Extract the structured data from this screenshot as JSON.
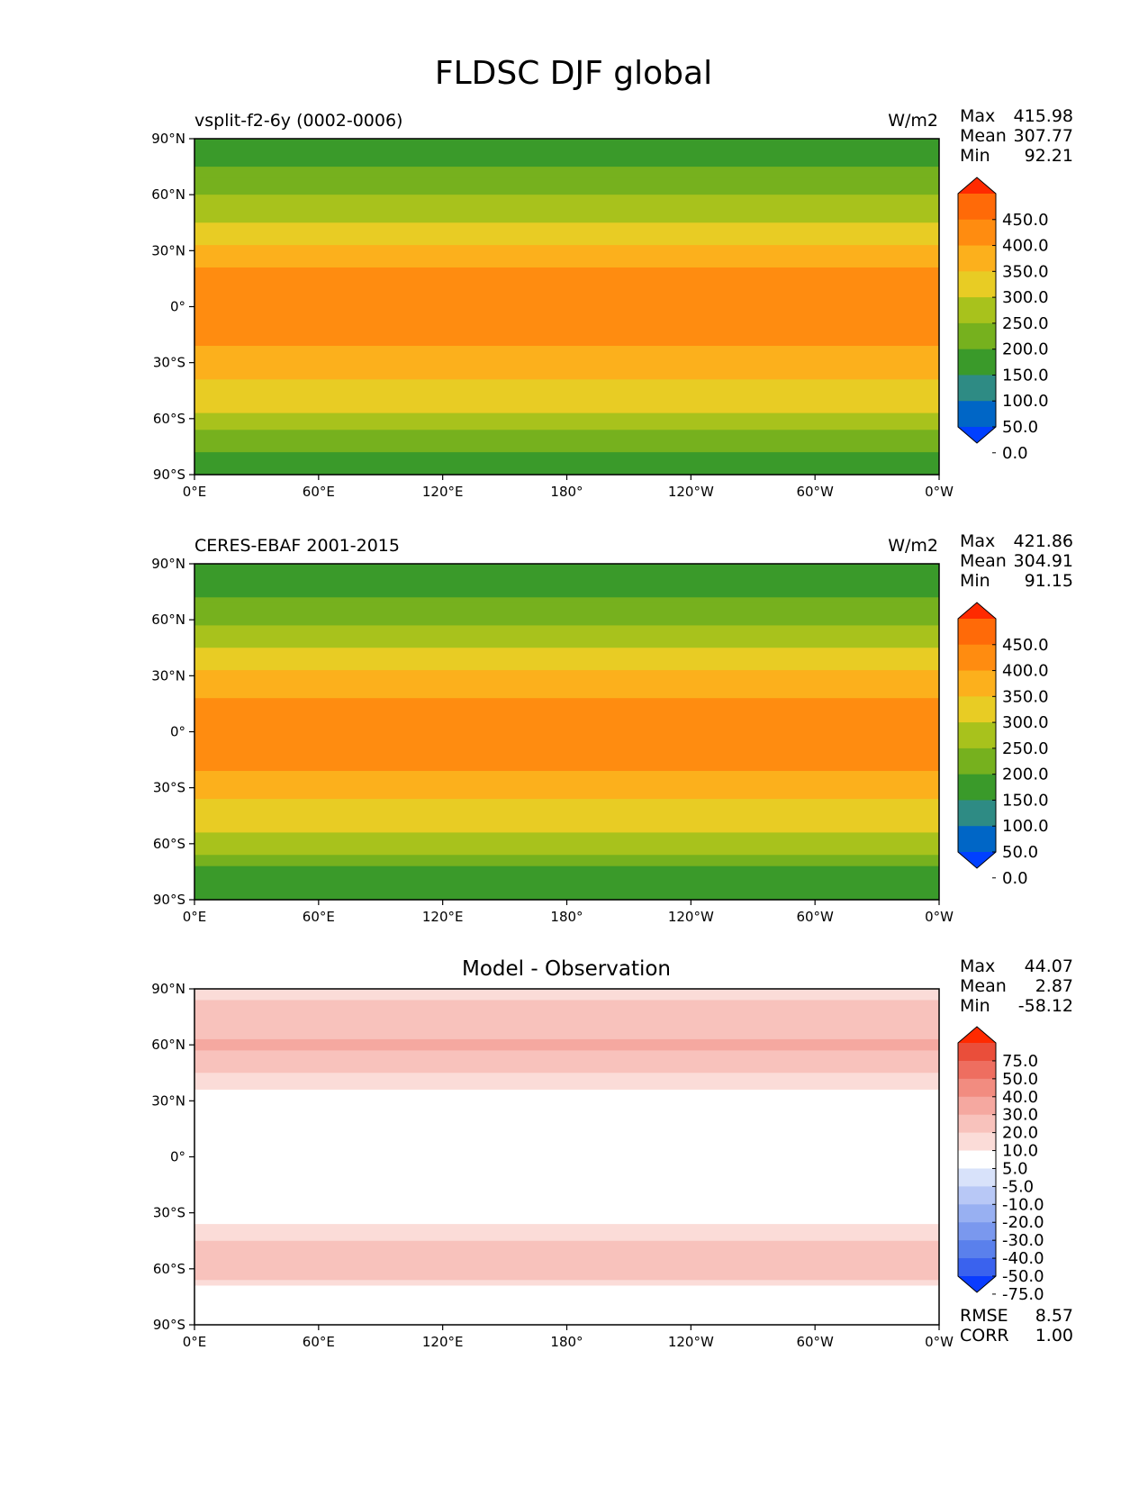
{
  "figure": {
    "title": "FLDSC DJF global"
  },
  "chart_data": [
    {
      "type": "heatmap",
      "panel": "test",
      "left_title": "vsplit-f2-6y (0002-0006)",
      "right_title": "W/m2",
      "center_title": "",
      "stats": [
        {
          "label": "Max",
          "value": "415.98"
        },
        {
          "label": "Mean",
          "value": "307.77"
        },
        {
          "label": "Min",
          "value": "92.21"
        }
      ],
      "colorbar": {
        "labels": [
          "450.0",
          "400.0",
          "350.0",
          "300.0",
          "250.0",
          "200.0",
          "150.0",
          "100.0",
          "50.0",
          "0.0"
        ],
        "colors": [
          "#0040ff",
          "#0066c6",
          "#2e8b84",
          "#3a9a2a",
          "#76b11e",
          "#a8c21c",
          "#e8cc24",
          "#fcb01c",
          "#ff8c10",
          "#ff6a08",
          "#ff2a00"
        ],
        "extend": "both"
      },
      "field": {
        "zonal_bands": [
          {
            "lat": 90,
            "value": 135
          },
          {
            "lat": 75,
            "value": 150
          },
          {
            "lat": 60,
            "value": 200
          },
          {
            "lat": 45,
            "value": 255
          },
          {
            "lat": 30,
            "value": 315
          },
          {
            "lat": 15,
            "value": 370
          },
          {
            "lat": 5,
            "value": 385
          },
          {
            "lat": -10,
            "value": 385
          },
          {
            "lat": -25,
            "value": 340
          },
          {
            "lat": -40,
            "value": 300
          },
          {
            "lat": -55,
            "value": 255
          },
          {
            "lat": -65,
            "value": 220
          },
          {
            "lat": -72,
            "value": 160
          },
          {
            "lat": -90,
            "value": 135
          }
        ]
      },
      "x_ticks": [
        "0°E",
        "60°E",
        "120°E",
        "180°",
        "120°W",
        "60°W",
        "0°W"
      ],
      "y_ticks": [
        "90°N",
        "60°N",
        "30°N",
        "0°",
        "30°S",
        "60°S",
        "90°S"
      ],
      "xlim": [
        0,
        360
      ],
      "ylim": [
        -90,
        90
      ],
      "footer": []
    },
    {
      "type": "heatmap",
      "panel": "reference",
      "left_title": "CERES-EBAF 2001-2015",
      "right_title": "W/m2",
      "center_title": "",
      "stats": [
        {
          "label": "Max",
          "value": "421.86"
        },
        {
          "label": "Mean",
          "value": "304.91"
        },
        {
          "label": "Min",
          "value": "91.15"
        }
      ],
      "colorbar": {
        "labels": [
          "450.0",
          "400.0",
          "350.0",
          "300.0",
          "250.0",
          "200.0",
          "150.0",
          "100.0",
          "50.0",
          "0.0"
        ],
        "colors": [
          "#0040ff",
          "#0066c6",
          "#2e8b84",
          "#3a9a2a",
          "#76b11e",
          "#a8c21c",
          "#e8cc24",
          "#fcb01c",
          "#ff8c10",
          "#ff6a08",
          "#ff2a00"
        ],
        "extend": "both"
      },
      "field": {
        "zonal_bands": [
          {
            "lat": 90,
            "value": 130
          },
          {
            "lat": 75,
            "value": 145
          },
          {
            "lat": 60,
            "value": 185
          },
          {
            "lat": 45,
            "value": 245
          },
          {
            "lat": 30,
            "value": 310
          },
          {
            "lat": 15,
            "value": 365
          },
          {
            "lat": 5,
            "value": 380
          },
          {
            "lat": -10,
            "value": 380
          },
          {
            "lat": -25,
            "value": 335
          },
          {
            "lat": -40,
            "value": 290
          },
          {
            "lat": -55,
            "value": 245
          },
          {
            "lat": -65,
            "value": 210
          },
          {
            "lat": -72,
            "value": 150
          },
          {
            "lat": -90,
            "value": 125
          }
        ]
      },
      "x_ticks": [
        "0°E",
        "60°E",
        "120°E",
        "180°",
        "120°W",
        "60°W",
        "0°W"
      ],
      "y_ticks": [
        "90°N",
        "60°N",
        "30°N",
        "0°",
        "30°S",
        "60°S",
        "90°S"
      ],
      "xlim": [
        0,
        360
      ],
      "ylim": [
        -90,
        90
      ],
      "footer": []
    },
    {
      "type": "heatmap",
      "panel": "difference",
      "left_title": "",
      "right_title": "",
      "center_title": "Model - Observation",
      "stats": [
        {
          "label": "Max",
          "value": "44.07"
        },
        {
          "label": "Mean",
          "value": "2.87"
        },
        {
          "label": "Min",
          "value": "-58.12"
        }
      ],
      "colorbar": {
        "labels": [
          "75.0",
          "50.0",
          "40.0",
          "30.0",
          "20.0",
          "10.0",
          "5.0",
          "-5.0",
          "-10.0",
          "-20.0",
          "-30.0",
          "-40.0",
          "-50.0",
          "-75.0"
        ],
        "colors": [
          "#0a3cff",
          "#3a62ee",
          "#5a80ec",
          "#7a98ee",
          "#98b0f2",
          "#b8c8f6",
          "#d8e2fa",
          "#ffffff",
          "#fbdcd8",
          "#f8c2bc",
          "#f5a8a0",
          "#f28c80",
          "#ee6e60",
          "#ea4e3a",
          "#ff2a00"
        ],
        "extend": "both"
      },
      "field": {
        "zonal_bands": [
          {
            "lat": 90,
            "value": 8
          },
          {
            "lat": 75,
            "value": 12
          },
          {
            "lat": 60,
            "value": 22
          },
          {
            "lat": 45,
            "value": 10
          },
          {
            "lat": 30,
            "value": 2
          },
          {
            "lat": 15,
            "value": 0
          },
          {
            "lat": 0,
            "value": 0
          },
          {
            "lat": -20,
            "value": 0
          },
          {
            "lat": -35,
            "value": 4
          },
          {
            "lat": -50,
            "value": 14
          },
          {
            "lat": -62,
            "value": 18
          },
          {
            "lat": -72,
            "value": 2
          },
          {
            "lat": -90,
            "value": 0
          }
        ]
      },
      "x_ticks": [
        "0°E",
        "60°E",
        "120°E",
        "180°",
        "120°W",
        "60°W",
        "0°W"
      ],
      "y_ticks": [
        "90°N",
        "60°N",
        "30°N",
        "0°",
        "30°S",
        "60°S",
        "90°S"
      ],
      "xlim": [
        0,
        360
      ],
      "ylim": [
        -90,
        90
      ],
      "footer": [
        {
          "label": "RMSE",
          "value": "8.57"
        },
        {
          "label": "CORR",
          "value": "1.00"
        }
      ]
    }
  ]
}
